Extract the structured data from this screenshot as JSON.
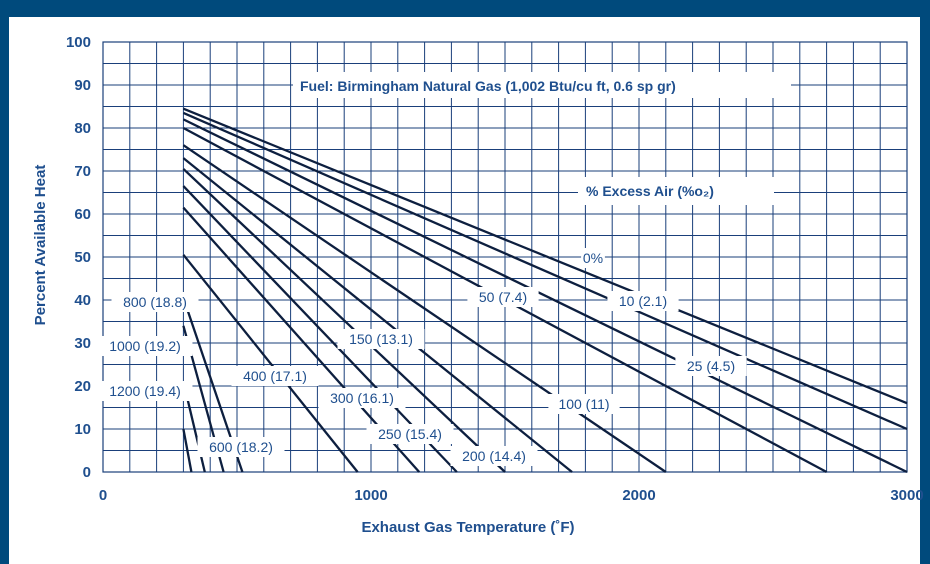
{
  "chart_data": {
    "type": "line",
    "xlabel": "Exhaust Gas Temperature (˚F)",
    "ylabel": "Percent Available Heat",
    "xlim": [
      0,
      3000
    ],
    "ylim": [
      0,
      100
    ],
    "x_ticks": [
      "0",
      "1000",
      "2000",
      "3000"
    ],
    "y_ticks": [
      "0",
      "10",
      "20",
      "30",
      "40",
      "50",
      "60",
      "70",
      "80",
      "90",
      "100"
    ],
    "grid": true,
    "annotation": "Fuel: Birmingham Natural Gas (1,002 Btu/cu ft, 0.6 sp gr)",
    "legend_title": "% Excess Air (%o₂)",
    "series": [
      {
        "name": "0%",
        "x": [
          300,
          3000
        ],
        "y": [
          84.5,
          16.0
        ]
      },
      {
        "name": "10 (2.1)",
        "x": [
          300,
          3000
        ],
        "y": [
          83.5,
          10.0
        ]
      },
      {
        "name": "25 (4.5)",
        "x": [
          300,
          3000
        ],
        "y": [
          82.0,
          0.0
        ]
      },
      {
        "name": "50 (7.4)",
        "x": [
          300,
          2700
        ],
        "y": [
          80.0,
          0.0
        ]
      },
      {
        "name": "100 (11)",
        "x": [
          300,
          2100
        ],
        "y": [
          76.0,
          0.0
        ]
      },
      {
        "name": "150 (13.1)",
        "x": [
          300,
          1750
        ],
        "y": [
          73.0,
          0.0
        ]
      },
      {
        "name": "200 (14.4)",
        "x": [
          300,
          1500
        ],
        "y": [
          70.5,
          0.0
        ]
      },
      {
        "name": "250 (15.4)",
        "x": [
          300,
          1320
        ],
        "y": [
          66.5,
          0.0
        ]
      },
      {
        "name": "300 (16.1)",
        "x": [
          300,
          1180
        ],
        "y": [
          61.5,
          0.0
        ]
      },
      {
        "name": "400 (17.1)",
        "x": [
          300,
          950
        ],
        "y": [
          50.5,
          0.0
        ]
      },
      {
        "name": "600 (18.2)",
        "x": [
          300,
          520
        ],
        "y": [
          40.5,
          0.0
        ]
      },
      {
        "name": "800 (18.8)",
        "x": [
          300,
          450
        ],
        "y": [
          34.0,
          0.0
        ]
      },
      {
        "name": "1000 (19.2)",
        "x": [
          300,
          380
        ],
        "y": [
          21.0,
          0.0
        ]
      },
      {
        "name": "1200 (19.4)",
        "x": [
          300,
          330
        ],
        "y": [
          10.0,
          0.0
        ]
      }
    ]
  }
}
